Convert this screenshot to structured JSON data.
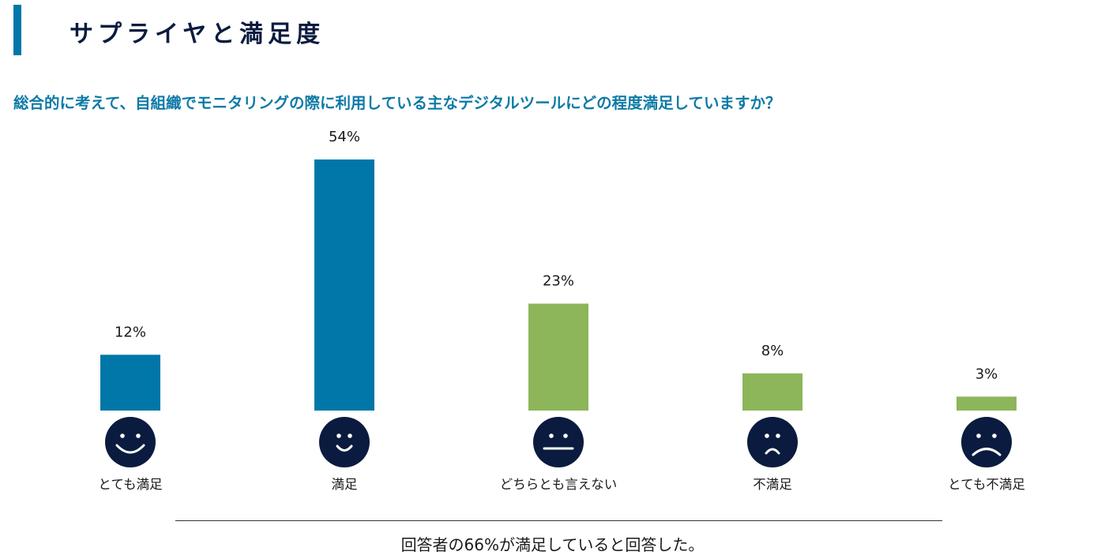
{
  "header": {
    "title": "サプライヤと満足度"
  },
  "question": "総合的に考えて、自組織でモニタリングの際に利用している主なデジタルツールにどの程度満足していますか？",
  "summary": "回答者の66%が満足していると回答した。",
  "colors": {
    "accent": "#0077a8",
    "title": "#0b1b3f",
    "question": "#0d7aa6",
    "satisfied": "#0077a8",
    "neutral_negative": "#8db55a",
    "face": "#0b1b3f"
  },
  "chart_data": {
    "type": "bar",
    "categories": [
      "とても満足",
      "満足",
      "どちらとも言えない",
      "不満足",
      "とても不満足"
    ],
    "values": [
      12,
      54,
      23,
      8,
      3
    ],
    "value_labels": [
      "12%",
      "54%",
      "23%",
      "8%",
      "3%"
    ],
    "bar_colors": [
      "#0077a8",
      "#0077a8",
      "#8db55a",
      "#8db55a",
      "#8db55a"
    ],
    "icons": [
      "very-happy-face-icon",
      "happy-face-icon",
      "neutral-face-icon",
      "sad-face-icon",
      "very-sad-face-icon"
    ],
    "ylim": [
      0,
      54
    ],
    "unit": "%",
    "grid": false
  }
}
